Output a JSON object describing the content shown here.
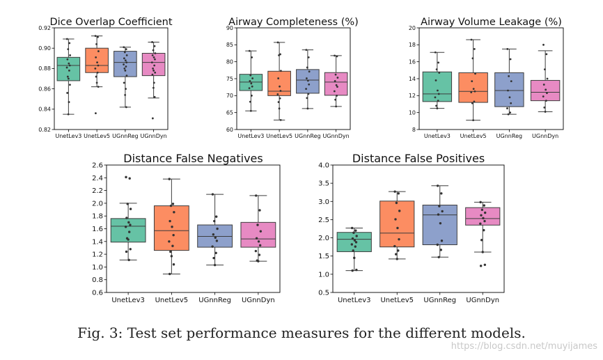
{
  "caption": "Fig. 3: Test set performance measures for the different models.",
  "watermark": "https://blog.csdn.net/muyijames",
  "colors": {
    "UnetLev3": "#66c2a5",
    "UnetLev5": "#fc8d62",
    "UGnnReg": "#8da0cb",
    "UGnnDyn": "#e78ac3"
  },
  "chart_data": [
    {
      "type": "box",
      "title": "Dice Overlap Coefficient",
      "categories": [
        "UnetLev3",
        "UnetLev5",
        "UGnnReg",
        "UGnnDyn"
      ],
      "ylim": [
        0.82,
        0.92
      ],
      "yticks": [
        "0.82",
        "0.84",
        "0.86",
        "0.88",
        "0.90",
        "0.92"
      ],
      "boxes": [
        {
          "whislo": 0.835,
          "q1": 0.868,
          "med": 0.883,
          "q3": 0.891,
          "whishi": 0.909
        },
        {
          "whislo": 0.862,
          "q1": 0.876,
          "med": 0.883,
          "q3": 0.9,
          "whishi": 0.912
        },
        {
          "whislo": 0.842,
          "q1": 0.872,
          "med": 0.886,
          "q3": 0.897,
          "whishi": 0.901
        },
        {
          "whislo": 0.851,
          "q1": 0.873,
          "med": 0.886,
          "q3": 0.895,
          "whishi": 0.906
        }
      ],
      "points": [
        [
          0.909,
          0.905,
          0.899,
          0.893,
          0.889,
          0.885,
          0.883,
          0.881,
          0.878,
          0.872,
          0.87,
          0.864,
          0.856,
          0.847,
          0.835
        ],
        [
          0.912,
          0.911,
          0.904,
          0.897,
          0.891,
          0.886,
          0.883,
          0.88,
          0.876,
          0.872,
          0.866,
          0.862,
          0.836
        ],
        [
          0.901,
          0.899,
          0.896,
          0.893,
          0.89,
          0.888,
          0.886,
          0.884,
          0.882,
          0.88,
          0.878,
          0.873,
          0.866,
          0.86,
          0.854,
          0.842
        ],
        [
          0.906,
          0.902,
          0.898,
          0.895,
          0.893,
          0.891,
          0.889,
          0.886,
          0.883,
          0.88,
          0.878,
          0.876,
          0.874,
          0.866,
          0.861,
          0.852,
          0.831
        ]
      ]
    },
    {
      "type": "box",
      "title": "Airway Completeness (%)",
      "categories": [
        "UnetLev3",
        "UnetLev5",
        "UGnnReg",
        "UGnnDyn"
      ],
      "ylim": [
        60,
        90
      ],
      "yticks": [
        "60",
        "65",
        "70",
        "75",
        "80",
        "85",
        "90"
      ],
      "boxes": [
        {
          "whislo": 65.5,
          "q1": 71.5,
          "med": 74.0,
          "q3": 76.3,
          "whishi": 83.2
        },
        {
          "whislo": 62.8,
          "q1": 70.0,
          "med": 71.3,
          "q3": 77.2,
          "whishi": 85.7
        },
        {
          "whislo": 66.2,
          "q1": 70.7,
          "med": 74.6,
          "q3": 77.7,
          "whishi": 83.5
        },
        {
          "whislo": 66.8,
          "q1": 70.1,
          "med": 74.0,
          "q3": 76.8,
          "whishi": 81.8
        }
      ],
      "points": [
        [
          83.2,
          81.3,
          76.0,
          75.1,
          74.3,
          73.6,
          72.7,
          72.2,
          70.0,
          68.2,
          65.5
        ],
        [
          85.7,
          82.2,
          81.9,
          77.3,
          75.1,
          72.7,
          71.4,
          70.4,
          69.2,
          68.1,
          66.2,
          62.8
        ],
        [
          83.5,
          81.3,
          78.3,
          77.1,
          75.1,
          74.4,
          73.3,
          72.0,
          70.5,
          69.3,
          66.2
        ],
        [
          81.8,
          81.6,
          76.2,
          75.3,
          74.3,
          73.1,
          72.6,
          71.3,
          70.0,
          68.8,
          66.8
        ]
      ]
    },
    {
      "type": "box",
      "title": "Airway Volume Leakage (%)",
      "categories": [
        "UnetLev3",
        "UnetLev5",
        "UGnnReg",
        "UGnnDyn"
      ],
      "ylim": [
        8,
        20
      ],
      "yticks": [
        "8",
        "10",
        "12",
        "14",
        "16",
        "18",
        "20"
      ],
      "boxes": [
        {
          "whislo": 10.5,
          "q1": 11.3,
          "med": 12.2,
          "q3": 14.8,
          "whishi": 17.1
        },
        {
          "whislo": 9.1,
          "q1": 11.2,
          "med": 12.5,
          "q3": 14.7,
          "whishi": 18.6
        },
        {
          "whislo": 9.8,
          "q1": 10.7,
          "med": 12.6,
          "q3": 14.7,
          "whishi": 17.5
        },
        {
          "whislo": 10.1,
          "q1": 11.4,
          "med": 12.4,
          "q3": 13.8,
          "whishi": 17.3
        }
      ],
      "points": [
        [
          17.1,
          15.9,
          15.1,
          14.7,
          13.8,
          12.6,
          12.2,
          11.8,
          11.4,
          10.8,
          10.5
        ],
        [
          18.6,
          17.5,
          16.4,
          14.6,
          13.7,
          12.8,
          12.5,
          12.4,
          11.3,
          11.1,
          9.1
        ],
        [
          17.5,
          16.3,
          14.3,
          13.7,
          12.6,
          11.8,
          11.1,
          10.5,
          10.0,
          9.8
        ],
        [
          18.0,
          16.9,
          15.1,
          14.0,
          13.3,
          12.7,
          12.3,
          11.9,
          11.4,
          10.6,
          10.1
        ]
      ]
    },
    {
      "type": "box",
      "title": "Distance False Negatives",
      "categories": [
        "UnetLev3",
        "UnetLev5",
        "UGnnReg",
        "UGnnDyn"
      ],
      "ylim": [
        0.6,
        2.6
      ],
      "yticks": [
        "0.6",
        "0.8",
        "1.0",
        "1.2",
        "1.4",
        "1.6",
        "1.8",
        "2.0",
        "2.2",
        "2.4",
        "2.6"
      ],
      "boxes": [
        {
          "whislo": 1.11,
          "q1": 1.39,
          "med": 1.64,
          "q3": 1.76,
          "whishi": 2.0
        },
        {
          "whislo": 0.89,
          "q1": 1.26,
          "med": 1.57,
          "q3": 1.96,
          "whishi": 2.38
        },
        {
          "whislo": 1.03,
          "q1": 1.31,
          "med": 1.48,
          "q3": 1.66,
          "whishi": 2.14
        },
        {
          "whislo": 1.09,
          "q1": 1.31,
          "med": 1.44,
          "q3": 1.7,
          "whishi": 2.12
        }
      ],
      "points": [
        [
          2.41,
          2.39,
          1.99,
          1.91,
          1.77,
          1.7,
          1.66,
          1.63,
          1.55,
          1.45,
          1.43,
          1.28,
          1.24,
          1.11
        ],
        [
          2.38,
          1.99,
          1.96,
          1.86,
          1.72,
          1.63,
          1.5,
          1.4,
          1.33,
          1.24,
          1.17,
          1.04,
          0.89
        ],
        [
          2.14,
          1.79,
          1.72,
          1.6,
          1.51,
          1.46,
          1.41,
          1.32,
          1.22,
          1.14,
          1.03
        ],
        [
          2.12,
          1.89,
          1.66,
          1.56,
          1.45,
          1.4,
          1.34,
          1.25,
          1.19,
          1.1,
          1.09
        ]
      ]
    },
    {
      "type": "box",
      "title": "Distance False Positives",
      "categories": [
        "UnetLev3",
        "UnetLev5",
        "UGnnReg",
        "UGnnDyn"
      ],
      "ylim": [
        0.5,
        4.0
      ],
      "yticks": [
        "0.5",
        "1.0",
        "1.5",
        "2.0",
        "2.5",
        "3.0",
        "3.5",
        "4.0"
      ],
      "boxes": [
        {
          "whislo": 1.1,
          "q1": 1.62,
          "med": 1.96,
          "q3": 2.15,
          "whishi": 2.27
        },
        {
          "whislo": 1.42,
          "q1": 1.75,
          "med": 2.13,
          "q3": 3.01,
          "whishi": 3.27
        },
        {
          "whislo": 1.47,
          "q1": 1.81,
          "med": 2.63,
          "q3": 2.9,
          "whishi": 3.43
        },
        {
          "whislo": 1.61,
          "q1": 2.35,
          "med": 2.53,
          "q3": 2.83,
          "whishi": 2.98
        }
      ],
      "points": [
        [
          2.27,
          2.2,
          2.14,
          2.05,
          1.98,
          1.93,
          1.88,
          1.82,
          1.76,
          1.65,
          1.45,
          1.12,
          1.1
        ],
        [
          3.27,
          3.22,
          2.96,
          2.74,
          2.51,
          2.27,
          1.96,
          1.77,
          1.65,
          1.55,
          1.42
        ],
        [
          3.43,
          3.22,
          2.87,
          2.73,
          2.64,
          2.4,
          1.92,
          1.81,
          1.67,
          1.47
        ],
        [
          2.98,
          2.89,
          2.77,
          2.69,
          2.62,
          2.54,
          2.46,
          2.39,
          2.21,
          1.94,
          1.61,
          1.26,
          1.23
        ]
      ]
    }
  ]
}
